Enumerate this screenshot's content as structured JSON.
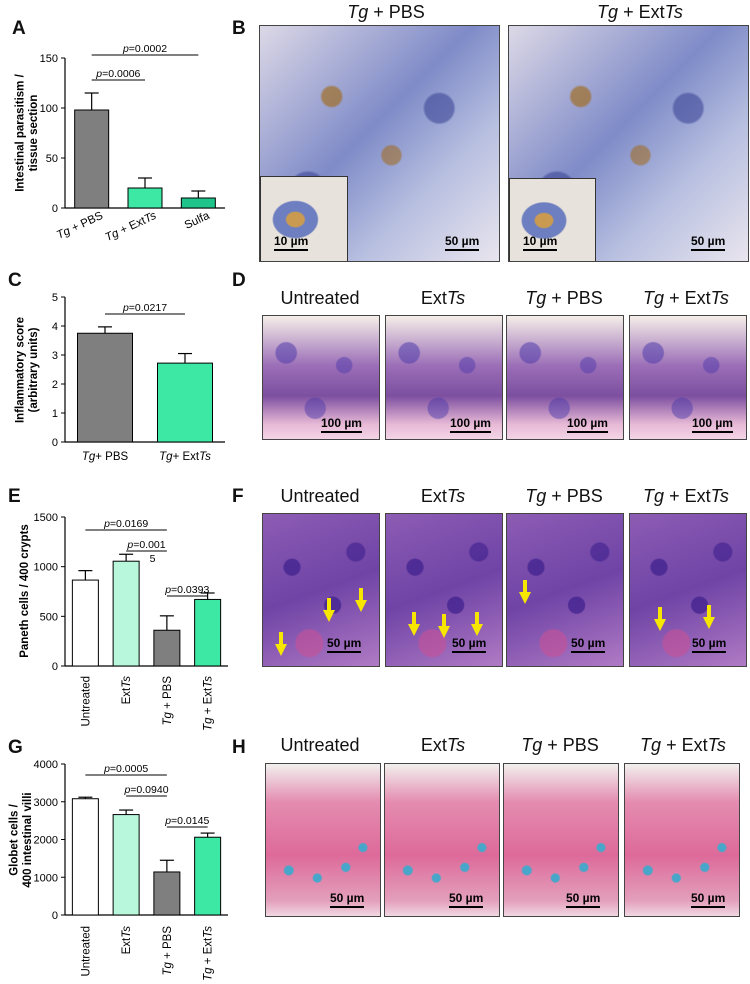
{
  "panels": {
    "A": "A",
    "B": "B",
    "C": "C",
    "D": "D",
    "E": "E",
    "F": "F",
    "G": "G",
    "H": "H"
  },
  "colors": {
    "tg_pbs": "#7f7f7f",
    "tg_ext": "#3de8a5",
    "sulfa": "#1ec48a",
    "untreated": "#ffffff",
    "ext": "#b9f7dc",
    "edge": "#000000"
  },
  "panel_B": {
    "headers": [
      "Tg + PBS",
      "Tg + ExtTs"
    ],
    "scale_main": "50 µm",
    "scale_inset": "10 µm"
  },
  "panel_D": {
    "headers": [
      "Untreated",
      "ExtTs",
      "Tg + PBS",
      "Tg + ExtTs"
    ],
    "scale": "100 µm"
  },
  "panel_F": {
    "headers": [
      "Untreated",
      "ExtTs",
      "Tg + PBS",
      "Tg + ExtTs"
    ],
    "scale": "50 µm"
  },
  "panel_H": {
    "headers": [
      "Untreated",
      "ExtTs",
      "Tg + PBS",
      "Tg + ExtTs"
    ],
    "scale": "50 µm"
  },
  "chart_data": [
    {
      "id": "A",
      "type": "bar",
      "ylabel": "Intestinal parasitism / tissue section",
      "categories": [
        "Tg + PBS",
        "Tg + ExtTs",
        "Sulfa"
      ],
      "values": [
        98,
        20,
        10
      ],
      "errors": [
        17,
        10,
        7
      ],
      "ylim": [
        0,
        150
      ],
      "yticks": [
        0,
        50,
        100,
        150
      ],
      "annotations": [
        "p=0.0006",
        "p=0.0002"
      ]
    },
    {
      "id": "C",
      "type": "bar",
      "ylabel": "Inflammatory score (arbitrary units)",
      "categories": [
        "Tg+ PBS",
        "Tg+ ExtTs"
      ],
      "values": [
        3.75,
        2.72
      ],
      "errors": [
        0.22,
        0.33
      ],
      "ylim": [
        0,
        5
      ],
      "yticks": [
        0,
        1,
        2,
        3,
        4,
        5
      ],
      "annotations": [
        "p=0.0217"
      ]
    },
    {
      "id": "E",
      "type": "bar",
      "ylabel": "Paneth cells / 400 crypts",
      "categories": [
        "Untreated",
        "ExtTs",
        "Tg + PBS",
        "Tg + ExtTs"
      ],
      "values": [
        865,
        1055,
        360,
        670
      ],
      "errors": [
        95,
        70,
        145,
        65
      ],
      "ylim": [
        0,
        1500
      ],
      "yticks": [
        0,
        500,
        1000,
        1500
      ],
      "annotations": [
        "p=0.0169",
        "p=0.001",
        "5",
        "p=0.0393"
      ]
    },
    {
      "id": "G",
      "type": "bar",
      "ylabel": "Globet cells / 400 intestinal villi",
      "categories": [
        "Untreated",
        "ExtTs",
        "Tg + PBS",
        "Tg + ExtTs"
      ],
      "values": [
        3080,
        2660,
        1140,
        2060
      ],
      "errors": [
        40,
        120,
        310,
        110
      ],
      "ylim": [
        0,
        4000
      ],
      "yticks": [
        0,
        1000,
        2000,
        3000,
        4000
      ],
      "annotations": [
        "p=0.0005",
        "p=0.0940",
        "p=0.0145"
      ]
    }
  ]
}
